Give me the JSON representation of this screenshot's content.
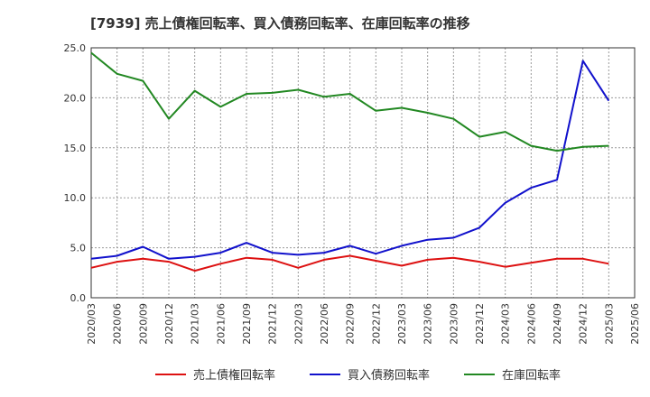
{
  "chart_data": {
    "type": "line",
    "title": "[7939]  売上債権回転率、買入債務回転率、在庫回転率の推移",
    "xlabel": "",
    "ylabel": "",
    "ylim": [
      0,
      25
    ],
    "yticks": [
      "0.0",
      "5.0",
      "10.0",
      "15.0",
      "20.0",
      "25.0"
    ],
    "grid": true,
    "legend_position": "bottom",
    "x": [
      "2020/03",
      "2020/06",
      "2020/09",
      "2020/12",
      "2021/03",
      "2021/06",
      "2021/09",
      "2021/12",
      "2022/03",
      "2022/06",
      "2022/09",
      "2022/12",
      "2023/03",
      "2023/06",
      "2023/09",
      "2023/12",
      "2024/03",
      "2024/06",
      "2024/09",
      "2024/12",
      "2025/03",
      "2025/06"
    ],
    "series": [
      {
        "name": "売上債権回転率",
        "color": "#dd1111",
        "values": [
          3.0,
          3.6,
          3.9,
          3.6,
          2.7,
          3.4,
          4.0,
          3.8,
          3.0,
          3.8,
          4.2,
          3.7,
          3.2,
          3.8,
          4.0,
          3.6,
          3.1,
          3.5,
          3.9,
          3.9,
          3.4,
          null
        ]
      },
      {
        "name": "買入債務回転率",
        "color": "#1111cc",
        "values": [
          3.9,
          4.2,
          5.1,
          3.9,
          4.1,
          4.5,
          5.5,
          4.5,
          4.3,
          4.5,
          5.2,
          4.4,
          5.2,
          5.8,
          6.0,
          7.0,
          9.5,
          11.0,
          11.8,
          23.7,
          19.7,
          null
        ]
      },
      {
        "name": "在庫回転率",
        "color": "#228822",
        "values": [
          24.5,
          22.4,
          21.7,
          17.9,
          20.7,
          19.1,
          20.4,
          20.5,
          20.8,
          20.1,
          20.4,
          18.7,
          19.0,
          18.5,
          17.9,
          16.1,
          16.6,
          15.2,
          14.7,
          15.1,
          15.2,
          null
        ]
      }
    ]
  }
}
